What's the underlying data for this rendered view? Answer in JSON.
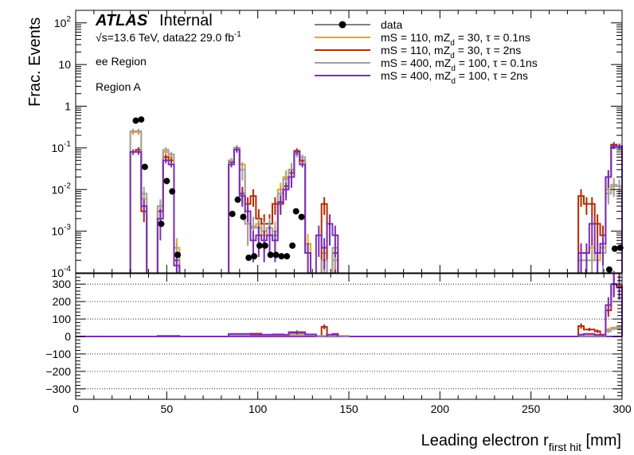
{
  "labels": {
    "atlas": "ATLAS",
    "internal": "Internal",
    "energy_line": "√s=13.6 TeV, data22 29.0 fb",
    "energy_sup": "-1",
    "region_line1": "ee Region",
    "region_line2": "Region A",
    "ylabel": "Frac. Events",
    "xlabel": "Leading electron r",
    "xlabel_sub": "first hit",
    "xlabel_unit": " [mm]"
  },
  "legend": [
    {
      "key": "data",
      "text": "data"
    },
    {
      "key": "s1",
      "text": "mS = 110, mZ_d = 30, τ = 0.1ns"
    },
    {
      "key": "s2",
      "text": "mS = 110, mZ_d = 30, τ = 2ns"
    },
    {
      "key": "s3",
      "text": "mS = 400, mZ_d = 100, τ = 0.1ns"
    },
    {
      "key": "s4",
      "text": "mS = 400, mZ_d = 100, τ = 2ns"
    }
  ],
  "colors": {
    "data": "#000000",
    "s1": "#f0a21c",
    "s2": "#b52a00",
    "s3": "#a0a0a0",
    "s4": "#7b2fb5"
  },
  "chart_data": {
    "type": "histogram",
    "x_range": [
      0,
      300
    ],
    "bin_width": 3,
    "x_ticks": [
      0,
      50,
      100,
      150,
      200,
      250,
      300
    ],
    "top_panel": {
      "y_scale": "log",
      "y_range": [
        0.0001,
        200
      ],
      "y_tick_labels": [
        "10^-4",
        "10^-3",
        "10^-2",
        "10^-1",
        "1",
        "10",
        "10^2"
      ],
      "y_tick_values": [
        0.0001,
        0.001,
        0.01,
        0.1,
        1,
        10,
        100
      ]
    },
    "bottom_panel": {
      "y_scale": "linear",
      "y_range": [
        -360,
        360
      ],
      "y_ticks": [
        -300,
        -200,
        -100,
        0,
        100,
        200,
        300
      ]
    },
    "data_points": [
      {
        "x": 33,
        "y": 0.45
      },
      {
        "x": 36,
        "y": 0.48
      },
      {
        "x": 38,
        "y": 0.035
      },
      {
        "x": 47,
        "y": 0.0015
      },
      {
        "x": 50,
        "y": 0.016
      },
      {
        "x": 53,
        "y": 0.009
      },
      {
        "x": 56,
        "y": 0.00027
      },
      {
        "x": 86,
        "y": 0.0026
      },
      {
        "x": 89,
        "y": 0.0057
      },
      {
        "x": 92,
        "y": 0.0022
      },
      {
        "x": 95,
        "y": 0.00023
      },
      {
        "x": 98,
        "y": 0.00025
      },
      {
        "x": 101,
        "y": 0.00045
      },
      {
        "x": 104,
        "y": 0.00045
      },
      {
        "x": 107,
        "y": 0.00027
      },
      {
        "x": 110,
        "y": 0.00027
      },
      {
        "x": 113,
        "y": 0.00025
      },
      {
        "x": 116,
        "y": 0.00025
      },
      {
        "x": 119,
        "y": 0.00045
      },
      {
        "x": 121,
        "y": 0.003
      },
      {
        "x": 124,
        "y": 0.0022
      },
      {
        "x": 293,
        "y": 0.00012
      },
      {
        "x": 296,
        "y": 0.00038
      },
      {
        "x": 299,
        "y": 0.0004
      }
    ],
    "series": [
      {
        "key": "s1",
        "bins": [
          [
            30,
            33,
            0.24
          ],
          [
            33,
            36,
            0.24
          ],
          [
            36,
            39,
            0.006
          ],
          [
            45,
            48,
            0.004
          ],
          [
            48,
            51,
            0.08
          ],
          [
            51,
            54,
            0.06
          ],
          [
            54,
            57,
            0.0004
          ],
          [
            84,
            87,
            0.05
          ],
          [
            87,
            90,
            0.1
          ],
          [
            90,
            93,
            0.04
          ],
          [
            93,
            96,
            0.0015
          ],
          [
            96,
            99,
            0.0012
          ],
          [
            99,
            102,
            0.0015
          ],
          [
            102,
            105,
            0.0008
          ],
          [
            105,
            108,
            0.0012
          ],
          [
            108,
            111,
            0.001
          ],
          [
            111,
            114,
            0.01
          ],
          [
            114,
            117,
            0.02
          ],
          [
            117,
            120,
            0.03
          ],
          [
            120,
            123,
            0.07
          ],
          [
            123,
            126,
            0.05
          ],
          [
            126,
            129,
            0.0005
          ],
          [
            135,
            138,
            0.0003
          ],
          [
            141,
            144,
            0.0002
          ],
          [
            276,
            279,
            0.0003
          ],
          [
            279,
            282,
            0.0003
          ],
          [
            282,
            285,
            0.0004
          ],
          [
            285,
            288,
            0.0002
          ],
          [
            288,
            291,
            0.0004
          ],
          [
            291,
            294,
            0.01
          ],
          [
            294,
            297,
            0.012
          ],
          [
            297,
            300,
            0.012
          ]
        ]
      },
      {
        "key": "s2",
        "bins": [
          [
            30,
            33,
            0.08
          ],
          [
            33,
            36,
            0.09
          ],
          [
            36,
            39,
            0.003
          ],
          [
            45,
            48,
            0.003
          ],
          [
            48,
            51,
            0.06
          ],
          [
            51,
            54,
            0.05
          ],
          [
            54,
            57,
            0.0002
          ],
          [
            84,
            87,
            0.045
          ],
          [
            87,
            90,
            0.1
          ],
          [
            90,
            93,
            0.008
          ],
          [
            93,
            96,
            0.0045
          ],
          [
            96,
            99,
            0.007
          ],
          [
            99,
            102,
            0.002
          ],
          [
            102,
            105,
            0.0015
          ],
          [
            105,
            108,
            0.0015
          ],
          [
            108,
            111,
            0.0045
          ],
          [
            111,
            114,
            0.0045
          ],
          [
            114,
            117,
            0.012
          ],
          [
            117,
            120,
            0.025
          ],
          [
            120,
            123,
            0.085
          ],
          [
            123,
            126,
            0.05
          ],
          [
            126,
            129,
            0.0003
          ],
          [
            135,
            138,
            0.0045
          ],
          [
            141,
            144,
            0.0003
          ],
          [
            276,
            279,
            0.007
          ],
          [
            279,
            282,
            0.0045
          ],
          [
            282,
            285,
            0.0045
          ],
          [
            285,
            288,
            0.0015
          ],
          [
            288,
            291,
            0.0008
          ],
          [
            291,
            294,
            0.02
          ],
          [
            294,
            297,
            0.12
          ],
          [
            297,
            300,
            0.11
          ]
        ]
      },
      {
        "key": "s3",
        "bins": [
          [
            30,
            33,
            0.25
          ],
          [
            33,
            36,
            0.25
          ],
          [
            36,
            39,
            0.008
          ],
          [
            45,
            48,
            0.004
          ],
          [
            48,
            51,
            0.09
          ],
          [
            51,
            54,
            0.07
          ],
          [
            54,
            57,
            0.0003
          ],
          [
            84,
            87,
            0.05
          ],
          [
            87,
            90,
            0.1
          ],
          [
            90,
            93,
            0.03
          ],
          [
            93,
            96,
            0.0015
          ],
          [
            96,
            99,
            0.0013
          ],
          [
            99,
            102,
            0.0012
          ],
          [
            102,
            105,
            0.001
          ],
          [
            105,
            108,
            0.0012
          ],
          [
            108,
            111,
            0.0008
          ],
          [
            111,
            114,
            0.008
          ],
          [
            114,
            117,
            0.018
          ],
          [
            117,
            120,
            0.03
          ],
          [
            120,
            123,
            0.07
          ],
          [
            123,
            126,
            0.06
          ],
          [
            126,
            129,
            0.0003
          ],
          [
            135,
            138,
            0.0002
          ],
          [
            141,
            144,
            0.0004
          ],
          [
            276,
            279,
            0.0002
          ],
          [
            279,
            282,
            0.0002
          ],
          [
            282,
            285,
            0.0002
          ],
          [
            285,
            288,
            0.0003
          ],
          [
            288,
            291,
            0.0003
          ],
          [
            291,
            294,
            0.008
          ],
          [
            294,
            297,
            0.013
          ],
          [
            297,
            300,
            0.012
          ]
        ]
      },
      {
        "key": "s4",
        "bins": [
          [
            30,
            33,
            0.08
          ],
          [
            33,
            36,
            0.08
          ],
          [
            36,
            39,
            0.004
          ],
          [
            45,
            48,
            0.002
          ],
          [
            48,
            51,
            0.05
          ],
          [
            51,
            54,
            0.04
          ],
          [
            54,
            57,
            0.00015
          ],
          [
            84,
            87,
            0.04
          ],
          [
            87,
            90,
            0.09
          ],
          [
            90,
            93,
            0.007
          ],
          [
            93,
            96,
            0.003
          ],
          [
            96,
            99,
            0.0006
          ],
          [
            99,
            102,
            0.0008
          ],
          [
            102,
            105,
            0.0006
          ],
          [
            105,
            108,
            0.0008
          ],
          [
            108,
            111,
            0.0006
          ],
          [
            111,
            114,
            0.005
          ],
          [
            114,
            117,
            0.01
          ],
          [
            117,
            120,
            0.02
          ],
          [
            120,
            123,
            0.08
          ],
          [
            123,
            126,
            0.04
          ],
          [
            126,
            129,
            0.0003
          ],
          [
            132,
            135,
            0.0008
          ],
          [
            135,
            138,
            0.0004
          ],
          [
            138,
            141,
            0.0015
          ],
          [
            141,
            144,
            0.0008
          ],
          [
            276,
            279,
            0.0003
          ],
          [
            279,
            282,
            0.0003
          ],
          [
            282,
            285,
            0.0015
          ],
          [
            285,
            288,
            0.0003
          ],
          [
            288,
            291,
            0.0005
          ],
          [
            291,
            294,
            0.02
          ],
          [
            294,
            297,
            0.11
          ],
          [
            297,
            300,
            0.11
          ]
        ]
      }
    ],
    "ratio_series": [
      {
        "key": "s1",
        "bins": [
          [
            45,
            57,
            4
          ],
          [
            84,
            96,
            10
          ],
          [
            96,
            132,
            8
          ],
          [
            132,
            150,
            4
          ],
          [
            276,
            291,
            10
          ],
          [
            291,
            294,
            40
          ],
          [
            294,
            300,
            50
          ]
        ]
      },
      {
        "key": "s2",
        "bins": [
          [
            84,
            96,
            12
          ],
          [
            96,
            102,
            16
          ],
          [
            108,
            114,
            12
          ],
          [
            117,
            126,
            20
          ],
          [
            135,
            138,
            55
          ],
          [
            141,
            144,
            15
          ],
          [
            276,
            279,
            60
          ],
          [
            279,
            285,
            40
          ],
          [
            285,
            288,
            30
          ],
          [
            288,
            291,
            10
          ],
          [
            291,
            294,
            150
          ],
          [
            294,
            297,
            300
          ],
          [
            297,
            300,
            290
          ]
        ]
      },
      {
        "key": "s3",
        "bins": [
          [
            45,
            57,
            3
          ],
          [
            84,
            96,
            8
          ],
          [
            96,
            132,
            8
          ],
          [
            132,
            150,
            3
          ],
          [
            276,
            291,
            3
          ],
          [
            291,
            294,
            30
          ],
          [
            294,
            297,
            45
          ],
          [
            297,
            300,
            48
          ]
        ]
      },
      {
        "key": "s4",
        "bins": [
          [
            45,
            57,
            2
          ],
          [
            84,
            96,
            15
          ],
          [
            96,
            117,
            10
          ],
          [
            117,
            126,
            25
          ],
          [
            126,
            132,
            12
          ],
          [
            138,
            144,
            10
          ],
          [
            276,
            279,
            10
          ],
          [
            279,
            285,
            15
          ],
          [
            285,
            291,
            8
          ],
          [
            291,
            294,
            180
          ],
          [
            294,
            297,
            300
          ],
          [
            297,
            300,
            280
          ]
        ]
      }
    ]
  }
}
